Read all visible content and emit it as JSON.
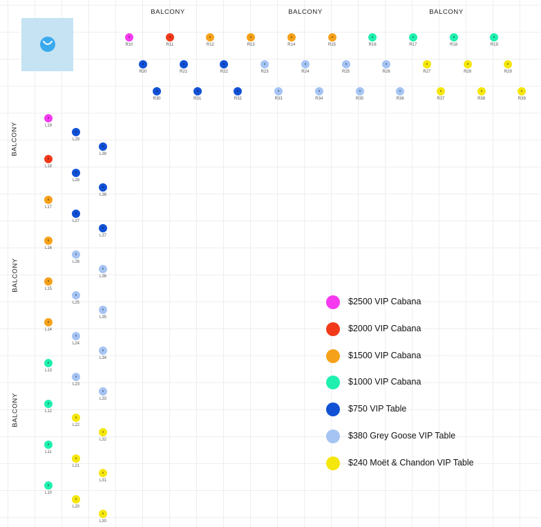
{
  "balcony_label": "BALCONY",
  "logo": {
    "icon": "smile-logo-icon"
  },
  "tiers": {
    "pink": {
      "color": "#f53af0",
      "label": "$2500 VIP Cabana"
    },
    "red": {
      "color": "#f23a1b",
      "label": "$2000 VIP Cabana"
    },
    "orange": {
      "color": "#f5a11a",
      "label": "$1500 VIP Cabana"
    },
    "teal": {
      "color": "#1ef0b0",
      "label": "$1000 VIP Cabana"
    },
    "blue": {
      "color": "#1151d6",
      "label": "$750 VIP Table"
    },
    "lblue": {
      "color": "#a5c4f4",
      "label": "$380 Grey Goose VIP Table"
    },
    "yellow": {
      "color": "#f5e60c",
      "label": "$240 Moët & Chandon VIP Table"
    }
  },
  "legend": [
    "pink",
    "red",
    "orange",
    "teal",
    "blue",
    "lblue",
    "yellow"
  ],
  "seats": {
    "right_row1": [
      {
        "id": "R10",
        "tier": "pink"
      },
      {
        "id": "R11",
        "tier": "red"
      },
      {
        "id": "R12",
        "tier": "orange"
      },
      {
        "id": "R13",
        "tier": "orange"
      },
      {
        "id": "R14",
        "tier": "orange"
      },
      {
        "id": "R15",
        "tier": "orange"
      },
      {
        "id": "R16",
        "tier": "teal"
      },
      {
        "id": "R17",
        "tier": "teal"
      },
      {
        "id": "R18",
        "tier": "teal"
      },
      {
        "id": "R19",
        "tier": "teal"
      }
    ],
    "right_row2": [
      {
        "id": "R20",
        "tier": "blue"
      },
      {
        "id": "R21",
        "tier": "blue"
      },
      {
        "id": "R22",
        "tier": "blue"
      },
      {
        "id": "R23",
        "tier": "lblue"
      },
      {
        "id": "R24",
        "tier": "lblue"
      },
      {
        "id": "R25",
        "tier": "lblue"
      },
      {
        "id": "R26",
        "tier": "lblue"
      },
      {
        "id": "R27",
        "tier": "yellow"
      },
      {
        "id": "R28",
        "tier": "yellow"
      },
      {
        "id": "R29",
        "tier": "yellow"
      }
    ],
    "right_row3": [
      {
        "id": "R30",
        "tier": "blue"
      },
      {
        "id": "R31",
        "tier": "blue"
      },
      {
        "id": "R32",
        "tier": "blue"
      },
      {
        "id": "R33",
        "tier": "lblue"
      },
      {
        "id": "R34",
        "tier": "lblue"
      },
      {
        "id": "R35",
        "tier": "lblue"
      },
      {
        "id": "R36",
        "tier": "lblue"
      },
      {
        "id": "R37",
        "tier": "yellow"
      },
      {
        "id": "R38",
        "tier": "yellow"
      },
      {
        "id": "R39",
        "tier": "yellow"
      }
    ],
    "left_col1": [
      {
        "id": "L19",
        "tier": "pink"
      },
      {
        "id": "L18",
        "tier": "red"
      },
      {
        "id": "L17",
        "tier": "orange"
      },
      {
        "id": "L16",
        "tier": "orange"
      },
      {
        "id": "L15",
        "tier": "orange"
      },
      {
        "id": "L14",
        "tier": "orange"
      },
      {
        "id": "L13",
        "tier": "teal"
      },
      {
        "id": "L12",
        "tier": "teal"
      },
      {
        "id": "L11",
        "tier": "teal"
      },
      {
        "id": "L10",
        "tier": "teal"
      }
    ],
    "left_col2": [
      {
        "id": "L29",
        "tier": "blue"
      },
      {
        "id": "L28",
        "tier": "blue"
      },
      {
        "id": "L27",
        "tier": "blue"
      },
      {
        "id": "L26",
        "tier": "lblue"
      },
      {
        "id": "L25",
        "tier": "lblue"
      },
      {
        "id": "L24",
        "tier": "lblue"
      },
      {
        "id": "L23",
        "tier": "lblue"
      },
      {
        "id": "L22",
        "tier": "yellow"
      },
      {
        "id": "L21",
        "tier": "yellow"
      },
      {
        "id": "L20",
        "tier": "yellow"
      }
    ],
    "left_col3": [
      {
        "id": "L39",
        "tier": "blue"
      },
      {
        "id": "L38",
        "tier": "blue"
      },
      {
        "id": "L37",
        "tier": "blue"
      },
      {
        "id": "L36",
        "tier": "lblue"
      },
      {
        "id": "L35",
        "tier": "lblue"
      },
      {
        "id": "L34",
        "tier": "lblue"
      },
      {
        "id": "L33",
        "tier": "lblue"
      },
      {
        "id": "L32",
        "tier": "yellow"
      },
      {
        "id": "L31",
        "tier": "yellow"
      },
      {
        "id": "L30",
        "tier": "yellow"
      }
    ]
  }
}
